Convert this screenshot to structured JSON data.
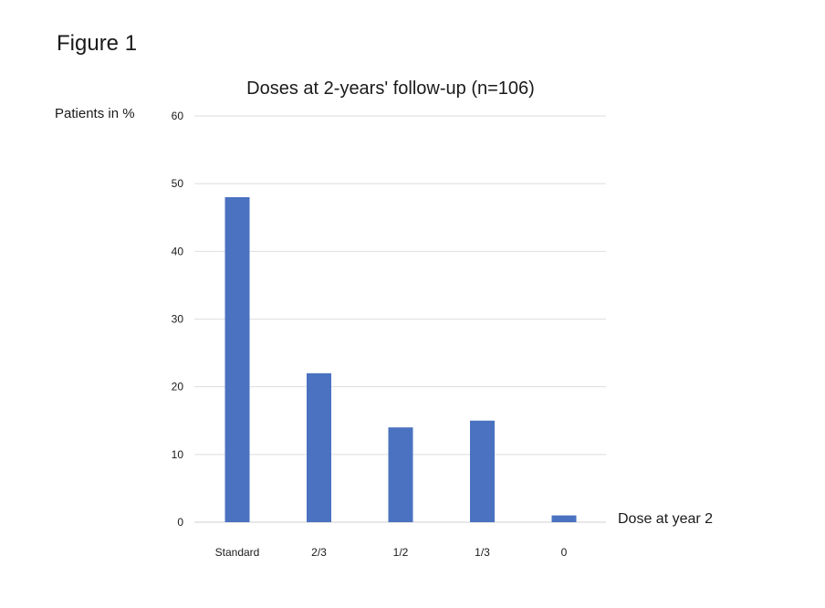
{
  "figure_label": "Figure 1",
  "chart_data": {
    "type": "bar",
    "title": "Doses at 2-years' follow-up (n=106)",
    "ylabel": "Patients in %",
    "xlabel": "Dose at year 2",
    "categories": [
      "Standard",
      "2/3",
      "1/2",
      "1/3",
      "0"
    ],
    "values": [
      48,
      22,
      14,
      15,
      1
    ],
    "ylim": [
      0,
      60
    ],
    "yticks": [
      0,
      10,
      20,
      30,
      40,
      50,
      60
    ],
    "grid": true,
    "legend": "none",
    "bar_color": "#4a72c0"
  }
}
